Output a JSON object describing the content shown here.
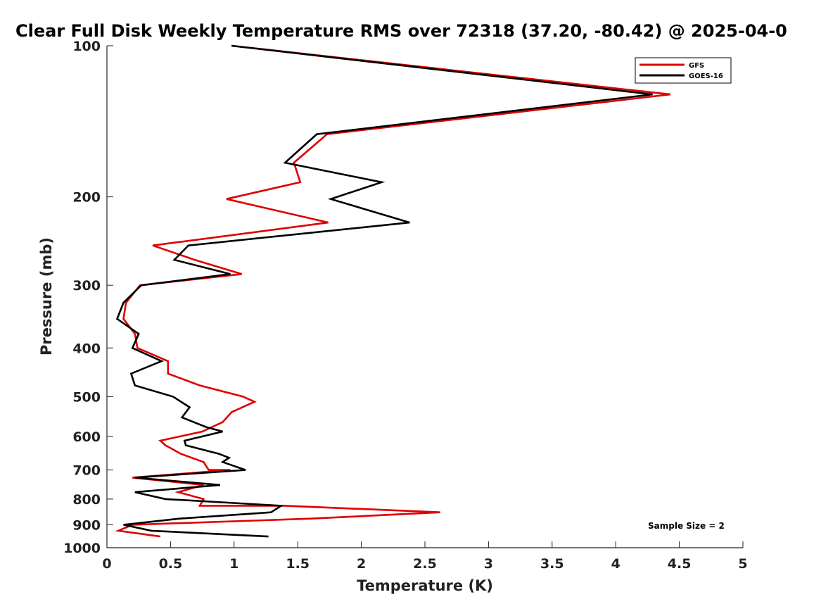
{
  "chart_data": {
    "type": "line",
    "title": "Clear Full Disk Weekly Temperature RMS over 72318 (37.20, -80.42) @ 2025-04-0",
    "xlabel": "Temperature (K)",
    "ylabel": "Pressure (mb)",
    "xlim": [
      0,
      5
    ],
    "ylim": [
      100,
      1000
    ],
    "y_scale": "log",
    "y_reversed": true,
    "x_ticks": [
      "0",
      "0.5",
      "1",
      "1.5",
      "2",
      "2.5",
      "3",
      "3.5",
      "4",
      "4.5",
      "5"
    ],
    "y_ticks": [
      "100",
      "200",
      "300",
      "400",
      "500",
      "600",
      "700",
      "800",
      "900",
      "1000"
    ],
    "legend_position": "top-right",
    "grid": false,
    "annotation": "Sample Size = 2",
    "series": [
      {
        "name": "GFS",
        "color": "#e00000",
        "points": [
          [
            0.98,
            100
          ],
          [
            4.43,
            125
          ],
          [
            1.73,
            150
          ],
          [
            1.47,
            171
          ],
          [
            1.52,
            187
          ],
          [
            0.94,
            202
          ],
          [
            1.74,
            225
          ],
          [
            0.36,
            250
          ],
          [
            0.69,
            267
          ],
          [
            1.06,
            285
          ],
          [
            0.26,
            300
          ],
          [
            0.15,
            325
          ],
          [
            0.13,
            350
          ],
          [
            0.22,
            375
          ],
          [
            0.24,
            400
          ],
          [
            0.48,
            425
          ],
          [
            0.48,
            450
          ],
          [
            0.73,
            475
          ],
          [
            1.07,
            500
          ],
          [
            1.16,
            512
          ],
          [
            0.98,
            537
          ],
          [
            0.91,
            562
          ],
          [
            0.75,
            587
          ],
          [
            0.42,
            612
          ],
          [
            0.46,
            625
          ],
          [
            0.58,
            650
          ],
          [
            0.76,
            675
          ],
          [
            0.8,
            700
          ],
          [
            0.97,
            700
          ],
          [
            0.2,
            725
          ],
          [
            0.76,
            750
          ],
          [
            0.56,
            775
          ],
          [
            0.76,
            800
          ],
          [
            0.73,
            825
          ],
          [
            1.4,
            825
          ],
          [
            2.62,
            850
          ],
          [
            1.6,
            875
          ],
          [
            0.2,
            900
          ],
          [
            0.09,
            925
          ],
          [
            0.42,
            950
          ]
        ]
      },
      {
        "name": "GOES-16",
        "color": "#000000",
        "points": [
          [
            0.98,
            100
          ],
          [
            4.29,
            125
          ],
          [
            1.65,
            150
          ],
          [
            1.4,
            171
          ],
          [
            2.16,
            187
          ],
          [
            1.76,
            202
          ],
          [
            2.38,
            225
          ],
          [
            0.64,
            250
          ],
          [
            0.53,
            267
          ],
          [
            0.97,
            285
          ],
          [
            0.27,
            300
          ],
          [
            0.13,
            325
          ],
          [
            0.08,
            350
          ],
          [
            0.25,
            375
          ],
          [
            0.2,
            400
          ],
          [
            0.43,
            425
          ],
          [
            0.19,
            450
          ],
          [
            0.22,
            475
          ],
          [
            0.52,
            500
          ],
          [
            0.65,
            525
          ],
          [
            0.59,
            550
          ],
          [
            0.78,
            575
          ],
          [
            0.91,
            587
          ],
          [
            0.61,
            612
          ],
          [
            0.62,
            625
          ],
          [
            0.88,
            650
          ],
          [
            0.96,
            662
          ],
          [
            0.91,
            675
          ],
          [
            1.09,
            700
          ],
          [
            0.22,
            725
          ],
          [
            0.89,
            750
          ],
          [
            0.22,
            775
          ],
          [
            0.46,
            800
          ],
          [
            1.37,
            825
          ],
          [
            1.29,
            850
          ],
          [
            0.57,
            875
          ],
          [
            0.13,
            900
          ],
          [
            0.35,
            925
          ],
          [
            1.27,
            950
          ]
        ]
      }
    ]
  }
}
